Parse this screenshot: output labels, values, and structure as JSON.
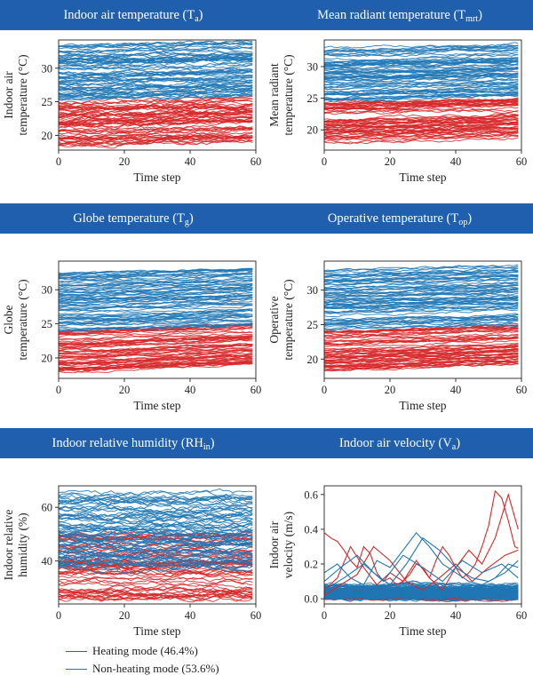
{
  "colors": {
    "band": "#1f5fae",
    "heating": "#d62728",
    "non_heating": "#1f77b4"
  },
  "legend": {
    "heating": "Heating mode (46.4%)",
    "non_heating": "Non-heating mode (53.6%)"
  },
  "chart_data": [
    {
      "type": "line",
      "title_main": "Indoor air temperature (T",
      "title_sub": "a",
      "title_end": ")",
      "ylabel": [
        "Indoor air",
        "temperature (°C)"
      ],
      "xlabel": "Time step",
      "xlim": [
        0,
        60
      ],
      "ylim": [
        17.8,
        34.2
      ],
      "xticks": [
        0,
        20,
        40,
        60
      ],
      "yticks": [
        20,
        25,
        30
      ],
      "series": [
        {
          "mode": "heating",
          "count": 60,
          "base_min": 18.5,
          "base_max": 25.0,
          "trend": 0.6,
          "noise": 0.5
        },
        {
          "mode": "non_heating",
          "count": 70,
          "base_min": 25.2,
          "base_max": 33.4,
          "trend": 0.6,
          "noise": 0.45
        }
      ]
    },
    {
      "type": "line",
      "title_main": "Mean radiant temperature (T",
      "title_sub": "mrt",
      "title_end": ")",
      "ylabel": [
        "Mean radiant",
        "temperature (°C)"
      ],
      "xlabel": "Time step",
      "xlim": [
        0,
        60
      ],
      "ylim": [
        16.8,
        34.2
      ],
      "xticks": [
        0,
        20,
        40,
        60
      ],
      "yticks": [
        20,
        25,
        30
      ],
      "series": [
        {
          "mode": "heating",
          "count": 60,
          "base_min": 18.0,
          "base_max": 24.5,
          "trend": 0.8,
          "noise": 0.4
        },
        {
          "mode": "non_heating",
          "count": 70,
          "base_min": 24.5,
          "base_max": 33.0,
          "trend": 0.8,
          "noise": 0.35
        }
      ]
    },
    {
      "type": "line",
      "title_main": "Globe temperature (T",
      "title_sub": "g",
      "title_end": ")",
      "ylabel": [
        "Globe",
        "temperature (°C)"
      ],
      "xlabel": "Time step",
      "xlim": [
        0,
        60
      ],
      "ylim": [
        17.0,
        34.2
      ],
      "xticks": [
        0,
        20,
        40,
        60
      ],
      "yticks": [
        20,
        25,
        30
      ],
      "series": [
        {
          "mode": "heating",
          "count": 60,
          "base_min": 18.0,
          "base_max": 24.0,
          "trend": 1.2,
          "noise": 0.3
        },
        {
          "mode": "non_heating",
          "count": 70,
          "base_min": 24.0,
          "base_max": 33.0,
          "trend": 0.9,
          "noise": 0.3
        }
      ]
    },
    {
      "type": "line",
      "title_main": "Operative temperature (T",
      "title_sub": "op",
      "title_end": ")",
      "ylabel": [
        "Operative",
        "temperature (°C)"
      ],
      "xlabel": "Time step",
      "xlim": [
        0,
        60
      ],
      "ylim": [
        17.2,
        34.2
      ],
      "xticks": [
        0,
        20,
        40,
        60
      ],
      "yticks": [
        20,
        25,
        30
      ],
      "series": [
        {
          "mode": "heating",
          "count": 60,
          "base_min": 18.3,
          "base_max": 24.3,
          "trend": 1.0,
          "noise": 0.3
        },
        {
          "mode": "non_heating",
          "count": 70,
          "base_min": 24.3,
          "base_max": 33.0,
          "trend": 0.8,
          "noise": 0.3
        }
      ]
    },
    {
      "type": "line",
      "title_main": "Indoor relative humidity (RH",
      "title_sub": "in",
      "title_end": ")",
      "ylabel": [
        "Indoor relative",
        "humidity (%)"
      ],
      "xlabel": "Time step",
      "xlim": [
        0,
        60
      ],
      "ylim": [
        24.0,
        68.0
      ],
      "xticks": [
        0,
        20,
        40,
        60
      ],
      "yticks": [
        40,
        60
      ],
      "series": [
        {
          "mode": "heating",
          "count": 60,
          "base_min": 26.0,
          "base_max": 50.0,
          "trend": 0.0,
          "noise": 1.5
        },
        {
          "mode": "non_heating",
          "count": 70,
          "base_min": 38.0,
          "base_max": 65.0,
          "trend": 0.0,
          "noise": 1.8
        }
      ]
    },
    {
      "type": "line",
      "title_main": "Indoor air velocity (V",
      "title_sub": "a",
      "title_end": ")",
      "ylabel": [
        "Indoor air",
        "velocity (m/s)"
      ],
      "xlabel": "Time step",
      "xlim": [
        0,
        60
      ],
      "ylim": [
        -0.03,
        0.65
      ],
      "xticks": [
        0,
        20,
        40,
        60
      ],
      "yticks": [
        0.0,
        0.2,
        0.4,
        0.6
      ],
      "ytick_decimals": 1,
      "series": [
        {
          "mode": "heating",
          "count": 60,
          "base_min": 0.0,
          "base_max": 0.05,
          "trend": 0.0,
          "noise": 0.015
        },
        {
          "mode": "non_heating",
          "count": 70,
          "base_min": 0.0,
          "base_max": 0.08,
          "trend": 0.0,
          "noise": 0.02
        }
      ],
      "spikes": [
        {
          "mode": "heating",
          "x": [
            0,
            2,
            4,
            6,
            8,
            10,
            12,
            14,
            16,
            18,
            20,
            22,
            24,
            26,
            28,
            30,
            32,
            34,
            36,
            38,
            40,
            42,
            44,
            46,
            48,
            50,
            52,
            54,
            56,
            58,
            59
          ],
          "y": [
            0.38,
            0.35,
            0.33,
            0.28,
            0.22,
            0.18,
            0.3,
            0.26,
            0.15,
            0.1,
            0.12,
            0.08,
            0.1,
            0.14,
            0.2,
            0.18,
            0.12,
            0.22,
            0.3,
            0.25,
            0.18,
            0.12,
            0.15,
            0.2,
            0.3,
            0.42,
            0.62,
            0.58,
            0.45,
            0.3,
            0.29
          ]
        },
        {
          "mode": "heating",
          "x": [
            0,
            4,
            8,
            12,
            16,
            20,
            24,
            28,
            32,
            36,
            40,
            44,
            48,
            52,
            56,
            59
          ],
          "y": [
            0.05,
            0.12,
            0.3,
            0.18,
            0.08,
            0.15,
            0.1,
            0.22,
            0.12,
            0.05,
            0.18,
            0.28,
            0.2,
            0.35,
            0.6,
            0.4
          ]
        },
        {
          "mode": "heating",
          "x": [
            0,
            5,
            10,
            15,
            20,
            25,
            30,
            35,
            40,
            45,
            50,
            55,
            59
          ],
          "y": [
            0.02,
            0.08,
            0.14,
            0.3,
            0.22,
            0.1,
            0.05,
            0.12,
            0.2,
            0.1,
            0.18,
            0.25,
            0.28
          ]
        },
        {
          "mode": "non_heating",
          "x": [
            0,
            4,
            8,
            12,
            16,
            20,
            24,
            28,
            32,
            36,
            40,
            44,
            48,
            52,
            56,
            59
          ],
          "y": [
            0.15,
            0.2,
            0.12,
            0.08,
            0.22,
            0.18,
            0.28,
            0.38,
            0.3,
            0.2,
            0.15,
            0.1,
            0.08,
            0.12,
            0.2,
            0.18
          ]
        },
        {
          "mode": "non_heating",
          "x": [
            0,
            5,
            10,
            15,
            20,
            25,
            30,
            35,
            40,
            45,
            50,
            55,
            59
          ],
          "y": [
            0.1,
            0.18,
            0.25,
            0.15,
            0.08,
            0.2,
            0.35,
            0.28,
            0.18,
            0.12,
            0.1,
            0.15,
            0.22
          ]
        },
        {
          "mode": "non_heating",
          "x": [
            0,
            6,
            12,
            18,
            24,
            30,
            36,
            42,
            48,
            54,
            59
          ],
          "y": [
            0.05,
            0.12,
            0.2,
            0.1,
            0.25,
            0.18,
            0.1,
            0.22,
            0.15,
            0.2,
            0.12
          ]
        }
      ]
    }
  ]
}
